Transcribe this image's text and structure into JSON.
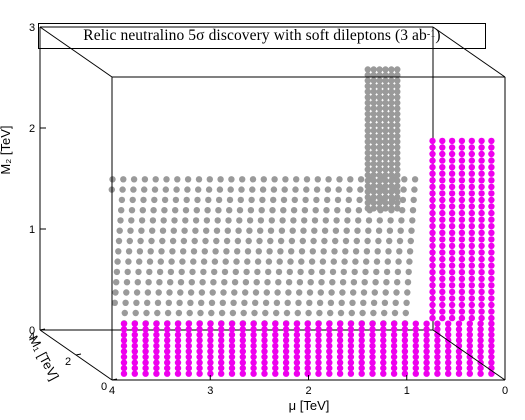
{
  "chart_data": {
    "type": "scatter3d",
    "title": {
      "prefix": "Relic neutralino 5σ discovery with soft dileptons (3 ab",
      "superscript": "-1",
      "suffix": ")"
    },
    "axes": {
      "x": {
        "label": "μ [TeV]",
        "range": [
          0,
          4
        ],
        "ticks": [
          "4",
          "3",
          "2",
          "1",
          "0"
        ]
      },
      "y": {
        "label": "M₁ [TeV]",
        "range": [
          0,
          4
        ],
        "ticks": [
          "0",
          "2",
          "4"
        ]
      },
      "z": {
        "label": "M₂ [TeV]",
        "range": [
          0,
          3
        ],
        "ticks": [
          "0",
          "1",
          "2",
          "3"
        ]
      }
    },
    "series": [
      {
        "key": "magenta",
        "color": "#ee00ee",
        "description_points": "bino-like region: M1 < M2, mu large — floor of points at M2 ≈ 0–0.5 for mu 0–4, plus a vertical wall at mu ≈ 0–0.8 rising to M2 ≈ 2.4",
        "mu_range": [
          0.1,
          3.9
        ],
        "M2_floor_range": [
          0.05,
          0.55
        ],
        "wall_mu_range": [
          0.1,
          0.8
        ],
        "wall_M2_range": [
          0.05,
          2.4
        ]
      },
      {
        "key": "grey",
        "color": "#9a9a9a",
        "description_points": "wino-like slanted surface M2 ≈ M1 rising from ~0.5 to ~2.1 TeV, plus a vertical sheet near mu ≈ 1.0 up to M2 ≈ 3",
        "mu_range": [
          0.8,
          3.9
        ],
        "M2_range": [
          0.6,
          2.1
        ],
        "sheet_mu": 1.0,
        "sheet_M2_range": [
          1.6,
          3.0
        ]
      }
    ],
    "grid": false,
    "legend": "none"
  }
}
